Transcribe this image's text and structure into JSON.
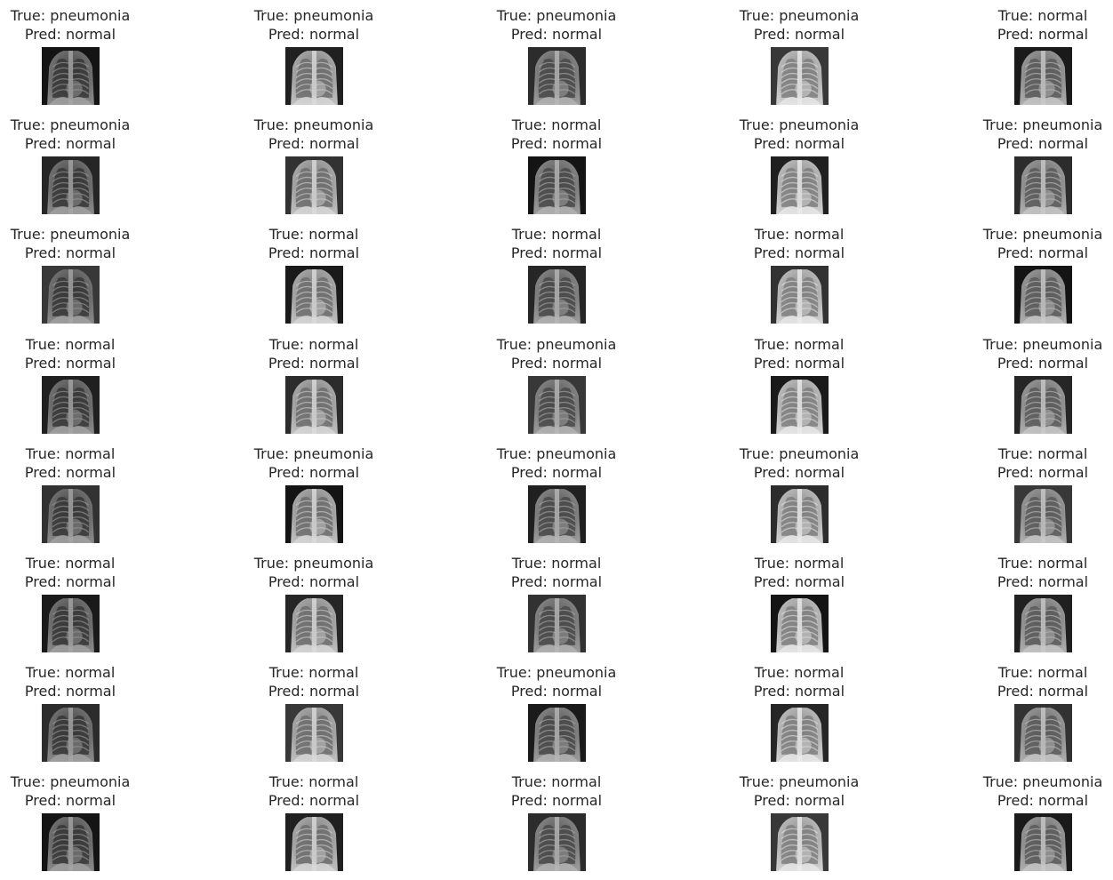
{
  "grid": {
    "rows": 8,
    "cols": 5,
    "true_prefix": "True: ",
    "pred_prefix": "Pred: ",
    "cells": [
      {
        "true": "pneumonia",
        "pred": "normal"
      },
      {
        "true": "pneumonia",
        "pred": "normal"
      },
      {
        "true": "pneumonia",
        "pred": "normal"
      },
      {
        "true": "pneumonia",
        "pred": "normal"
      },
      {
        "true": "normal",
        "pred": "normal"
      },
      {
        "true": "pneumonia",
        "pred": "normal"
      },
      {
        "true": "pneumonia",
        "pred": "normal"
      },
      {
        "true": "normal",
        "pred": "normal"
      },
      {
        "true": "pneumonia",
        "pred": "normal"
      },
      {
        "true": "pneumonia",
        "pred": "normal"
      },
      {
        "true": "pneumonia",
        "pred": "normal"
      },
      {
        "true": "normal",
        "pred": "normal"
      },
      {
        "true": "normal",
        "pred": "normal"
      },
      {
        "true": "normal",
        "pred": "normal"
      },
      {
        "true": "pneumonia",
        "pred": "normal"
      },
      {
        "true": "normal",
        "pred": "normal"
      },
      {
        "true": "normal",
        "pred": "normal"
      },
      {
        "true": "pneumonia",
        "pred": "normal"
      },
      {
        "true": "normal",
        "pred": "normal"
      },
      {
        "true": "pneumonia",
        "pred": "normal"
      },
      {
        "true": "normal",
        "pred": "normal"
      },
      {
        "true": "pneumonia",
        "pred": "normal"
      },
      {
        "true": "pneumonia",
        "pred": "normal"
      },
      {
        "true": "pneumonia",
        "pred": "normal"
      },
      {
        "true": "normal",
        "pred": "normal"
      },
      {
        "true": "normal",
        "pred": "normal"
      },
      {
        "true": "pneumonia",
        "pred": "normal"
      },
      {
        "true": "normal",
        "pred": "normal"
      },
      {
        "true": "normal",
        "pred": "normal"
      },
      {
        "true": "normal",
        "pred": "normal"
      },
      {
        "true": "normal",
        "pred": "normal"
      },
      {
        "true": "normal",
        "pred": "normal"
      },
      {
        "true": "pneumonia",
        "pred": "normal"
      },
      {
        "true": "normal",
        "pred": "normal"
      },
      {
        "true": "normal",
        "pred": "normal"
      },
      {
        "true": "pneumonia",
        "pred": "normal"
      },
      {
        "true": "normal",
        "pred": "normal"
      },
      {
        "true": "normal",
        "pred": "normal"
      },
      {
        "true": "pneumonia",
        "pred": "normal"
      },
      {
        "true": "pneumonia",
        "pred": "normal"
      }
    ]
  }
}
